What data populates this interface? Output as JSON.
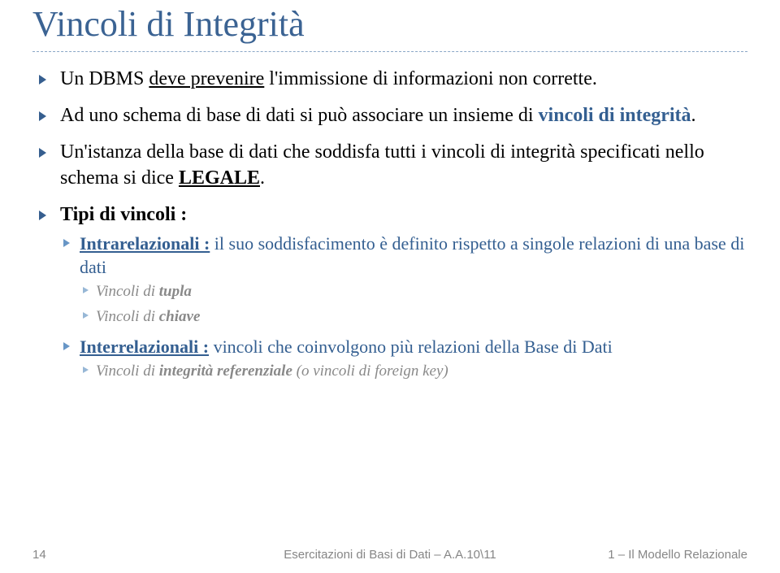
{
  "title": "Vincoli di Integrità",
  "bullets": {
    "b1": {
      "pre": "Un DBMS ",
      "emph": "deve prevenire",
      "post": " l'immissione di informazioni non corrette."
    },
    "b2": {
      "pre": "Ad uno schema di base di dati si può associare un insieme di ",
      "emph": "vincoli di integrità",
      "post": "."
    },
    "b3": {
      "pre": "Un'istanza della base di dati che soddisfa tutti i vincoli di integrità specificati nello schema si dice ",
      "emph": "LEGALE",
      "post": "."
    },
    "b4": {
      "label": "Tipi di vincoli :",
      "sub1": {
        "emph": "Intrarelazionali :",
        "rest": " il suo soddisfacimento è definito rispetto a singole relazioni di una base di dati",
        "s1a": "Vincoli di ",
        "s1a_b": "tupla",
        "s1b": "Vincoli di ",
        "s1b_b": "chiave"
      },
      "sub2": {
        "emph": "Interrelazionali :",
        "rest": " vincoli che coinvolgono più relazioni della Base di Dati",
        "s2a": "Vincoli di ",
        "s2a_b": "integrità referenziale",
        "s2a_post": " (o vincoli di foreign key)"
      }
    }
  },
  "footer": {
    "page": "14",
    "center": "Esercitazioni di Basi di Dati – A.A.10\\11",
    "right": "1 – Il Modello Relazionale"
  }
}
